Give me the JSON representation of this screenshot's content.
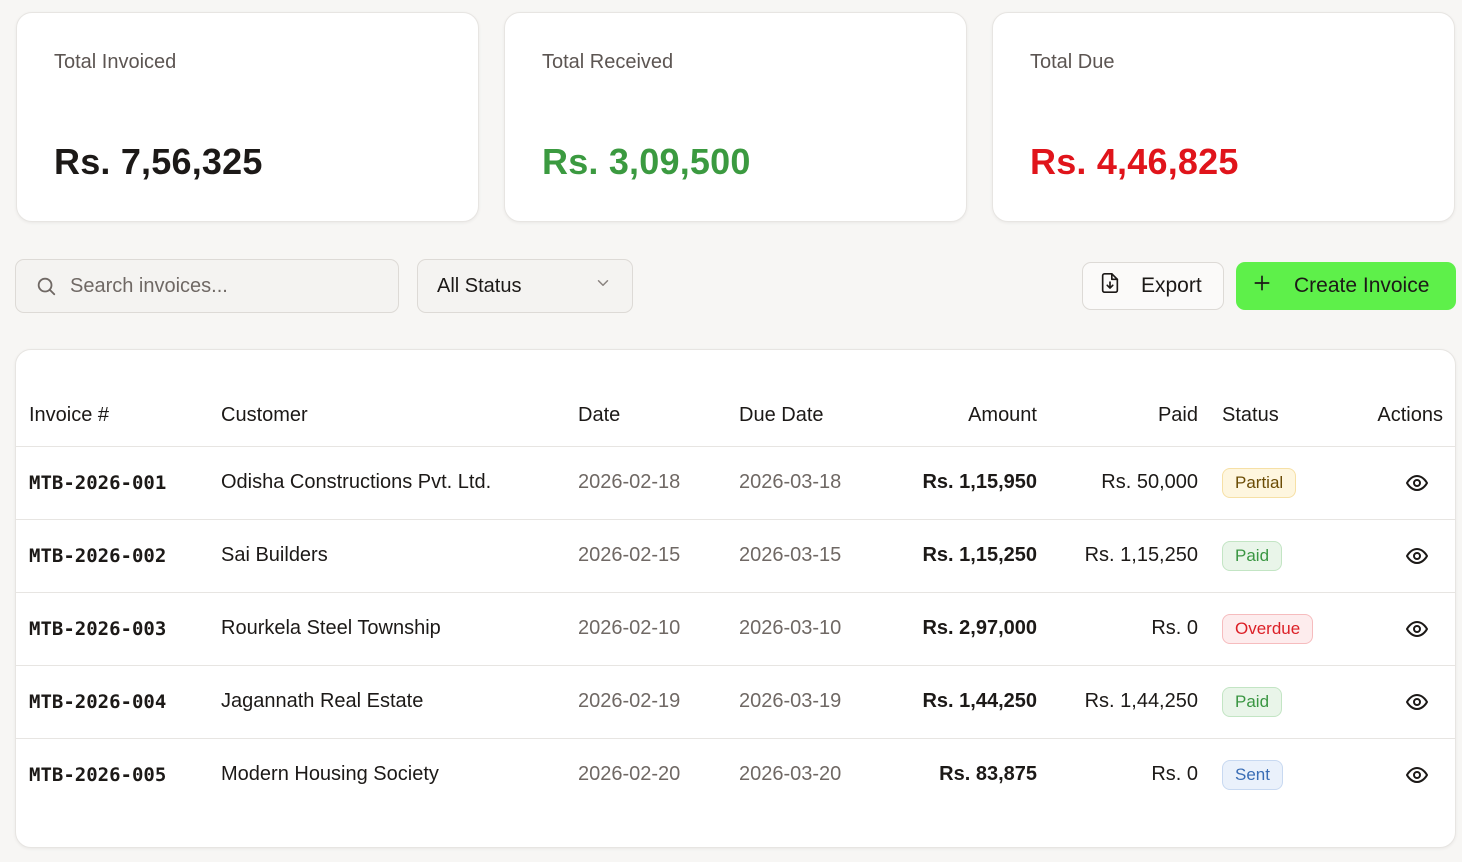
{
  "summary": {
    "invoiced": {
      "label": "Total Invoiced",
      "value": "Rs. 7,56,325",
      "color": "#1c1917"
    },
    "received": {
      "label": "Total Received",
      "value": "Rs. 3,09,500",
      "color": "#3b9a40"
    },
    "due": {
      "label": "Total Due",
      "value": "Rs. 4,46,825",
      "color": "#e0141b"
    }
  },
  "toolbar": {
    "search_placeholder": "Search invoices...",
    "search_value": "",
    "status_filter": "All Status",
    "export_label": "Export",
    "create_label": "Create Invoice",
    "accent": "#5ef04a"
  },
  "table": {
    "headers": {
      "invoice": "Invoice #",
      "customer": "Customer",
      "date": "Date",
      "due_date": "Due Date",
      "amount": "Amount",
      "paid": "Paid",
      "status": "Status",
      "actions": "Actions"
    },
    "rows": [
      {
        "invoice": "MTB-2026-001",
        "customer": "Odisha Constructions Pvt. Ltd.",
        "date": "2026-02-18",
        "due_date": "2026-03-18",
        "amount": "Rs. 1,15,950",
        "paid": "Rs. 50,000",
        "status": "Partial",
        "status_kind": "partial",
        "action_icon": "eye-icon"
      },
      {
        "invoice": "MTB-2026-002",
        "customer": "Sai Builders",
        "date": "2026-02-15",
        "due_date": "2026-03-15",
        "amount": "Rs. 1,15,250",
        "paid": "Rs. 1,15,250",
        "status": "Paid",
        "status_kind": "paid",
        "action_icon": "eye-icon"
      },
      {
        "invoice": "MTB-2026-003",
        "customer": "Rourkela Steel Township",
        "date": "2026-02-10",
        "due_date": "2026-03-10",
        "amount": "Rs. 2,97,000",
        "paid": "Rs. 0",
        "status": "Overdue",
        "status_kind": "overdue",
        "action_icon": "eye-icon"
      },
      {
        "invoice": "MTB-2026-004",
        "customer": "Jagannath Real Estate",
        "date": "2026-02-19",
        "due_date": "2026-03-19",
        "amount": "Rs. 1,44,250",
        "paid": "Rs. 1,44,250",
        "status": "Paid",
        "status_kind": "paid",
        "action_icon": "eye-icon"
      },
      {
        "invoice": "MTB-2026-005",
        "customer": "Modern Housing Society",
        "date": "2026-02-20",
        "due_date": "2026-03-20",
        "amount": "Rs. 83,875",
        "paid": "Rs. 0",
        "status": "Sent",
        "status_kind": "sent",
        "action_icon": "eye-icon"
      }
    ]
  }
}
